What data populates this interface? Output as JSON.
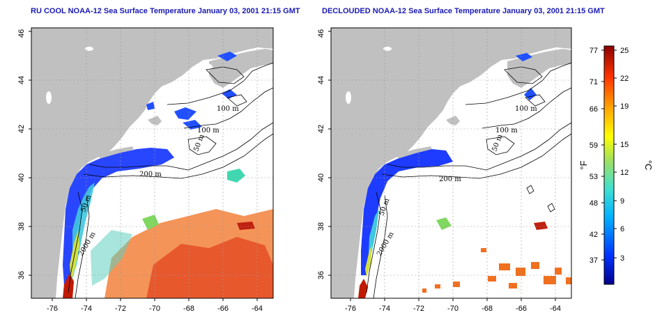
{
  "titles": {
    "left": "RU COOL NOAA-12 Sea Surface Temperature January 03, 2001 21:15 GMT",
    "right": "DECLOUDED NOAA-12 Sea Surface Temperature January 03, 2001 21:15 GMT"
  },
  "axes": {
    "lon_ticks": [
      "-76",
      "-74",
      "-72",
      "-70",
      "-68",
      "-66",
      "-64"
    ],
    "lat_ticks": [
      "36",
      "38",
      "40",
      "42",
      "44",
      "46"
    ],
    "lon_range": [
      -77,
      -63
    ],
    "lat_range": [
      35,
      46
    ]
  },
  "contours": {
    "left": [
      "100 m",
      "100 m",
      "50 m",
      "200 m",
      "50 m",
      "2000 m"
    ],
    "right": [
      "100 m",
      "100 m",
      "50 m",
      "200 m",
      "50 m",
      "2000 m"
    ]
  },
  "colorbar": {
    "fahrenheit_ticks": [
      "77",
      "71",
      "66",
      "59",
      "53",
      "48",
      "42",
      "37"
    ],
    "celsius_ticks": [
      "25",
      "22",
      "19",
      "15",
      "12",
      "9",
      "6",
      "3"
    ],
    "fahrenheit_unit": "°F",
    "celsius_unit": "°C",
    "colors": [
      "#00008b",
      "#0033ff",
      "#00b0ff",
      "#40e0d0",
      "#a0e060",
      "#ffff00",
      "#ffa500",
      "#ff3300",
      "#8b0000"
    ]
  },
  "colors": {
    "land": "#c0c0c0",
    "ocean": "#ffffff",
    "title": "#1a1ab3"
  }
}
